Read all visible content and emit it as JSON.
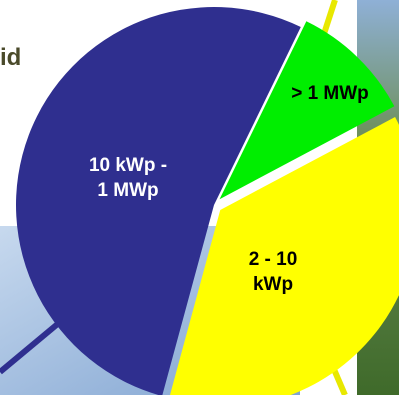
{
  "title_fragment": "id",
  "chart_data": {
    "type": "pie",
    "title": "",
    "slices": [
      {
        "label_lines": [
          "> 1 MWp"
        ],
        "value": 10,
        "color": "#00ee00"
      },
      {
        "label_lines": [
          "2 - 10",
          "kWp"
        ],
        "value": 37,
        "color": "#ffff00"
      },
      {
        "label_lines": [
          "10 kWp -",
          "1 MWp"
        ],
        "value": 53,
        "color": "#2f2f8f"
      }
    ],
    "start_angle_deg": 26,
    "exploded_slices": [
      0,
      1
    ],
    "legend": "none"
  },
  "background": {
    "sky_panel_color": "#9ab7dc",
    "photo_panel_color": "#5f8a3a",
    "beam_color": "#e8e800"
  }
}
